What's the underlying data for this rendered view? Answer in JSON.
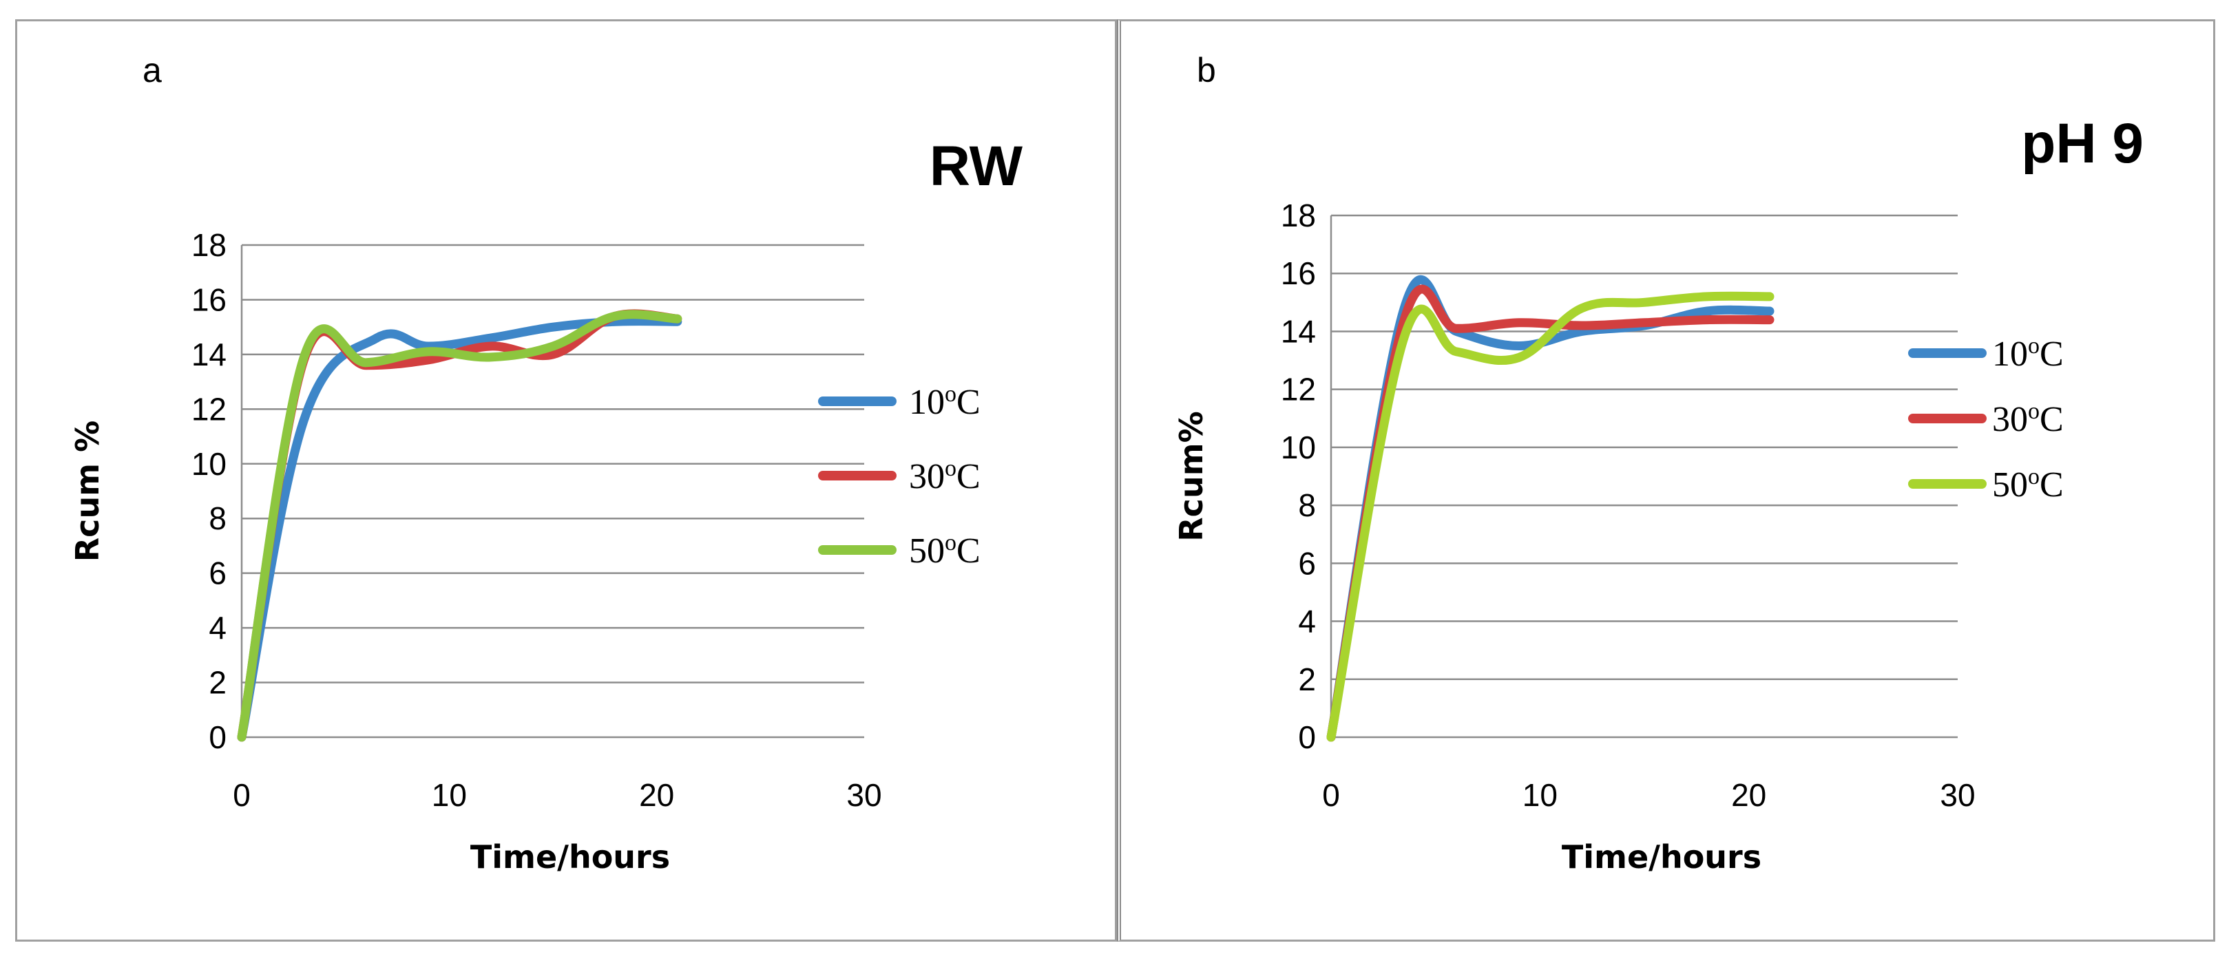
{
  "chart_data": [
    {
      "type": "line",
      "panel_label": "a",
      "title": "RW",
      "xlabel": "Time/hours",
      "ylabel": "Rcum %",
      "xlim": [
        0,
        30
      ],
      "ylim": [
        0,
        18
      ],
      "x_ticks": [
        "0",
        "10",
        "20",
        "30"
      ],
      "y_ticks": [
        "0",
        "2",
        "4",
        "6",
        "8",
        "10",
        "12",
        "14",
        "16",
        "18"
      ],
      "grid": true,
      "legend_position": "right",
      "series": [
        {
          "name": "10",
          "sup": "o",
          "unit": "C",
          "color": "#3e86c8",
          "x": [
            0,
            3,
            6.5,
            9,
            12,
            15,
            18,
            21
          ],
          "y": [
            0,
            11.6,
            14.6,
            14.3,
            14.6,
            15.0,
            15.2,
            15.2
          ]
        },
        {
          "name": "30",
          "sup": "o",
          "unit": "C",
          "color": "#d23f3f",
          "x": [
            0,
            3,
            6,
            9,
            12,
            15,
            18,
            21
          ],
          "y": [
            0,
            13.8,
            13.6,
            13.8,
            14.3,
            14.0,
            15.4,
            15.3
          ]
        },
        {
          "name": "50",
          "sup": "o",
          "unit": "C",
          "color": "#8dc63f",
          "x": [
            0,
            3,
            6,
            9,
            12,
            15,
            18,
            21
          ],
          "y": [
            0,
            13.9,
            13.7,
            14.1,
            13.9,
            14.3,
            15.4,
            15.3
          ]
        }
      ]
    },
    {
      "type": "line",
      "panel_label": "b",
      "title": "pH 9",
      "xlabel": "Time/hours",
      "ylabel": "Rcum%",
      "xlim": [
        0,
        30
      ],
      "ylim": [
        0,
        18
      ],
      "x_ticks": [
        "0",
        "10",
        "20",
        "30"
      ],
      "y_ticks": [
        "0",
        "2",
        "4",
        "6",
        "8",
        "10",
        "12",
        "14",
        "16",
        "18"
      ],
      "grid": true,
      "legend_position": "right",
      "series": [
        {
          "name": "10",
          "sup": "o",
          "unit": "C",
          "color": "#3e86c8",
          "x": [
            0,
            3.5,
            6,
            9,
            12,
            15,
            18,
            21
          ],
          "y": [
            0,
            14.8,
            14.0,
            13.5,
            14.0,
            14.2,
            14.7,
            14.7
          ]
        },
        {
          "name": "30",
          "sup": "o",
          "unit": "C",
          "color": "#d23f3f",
          "x": [
            0,
            3.5,
            6,
            9,
            12,
            15,
            18,
            21
          ],
          "y": [
            0,
            14.4,
            14.1,
            14.3,
            14.2,
            14.3,
            14.4,
            14.4
          ]
        },
        {
          "name": "50",
          "sup": "o",
          "unit": "C",
          "color": "#a8d42e",
          "x": [
            0,
            3.5,
            6,
            9,
            12,
            15,
            18,
            21
          ],
          "y": [
            0,
            13.8,
            13.3,
            13.1,
            14.8,
            15.0,
            15.2,
            15.2
          ]
        }
      ]
    }
  ]
}
